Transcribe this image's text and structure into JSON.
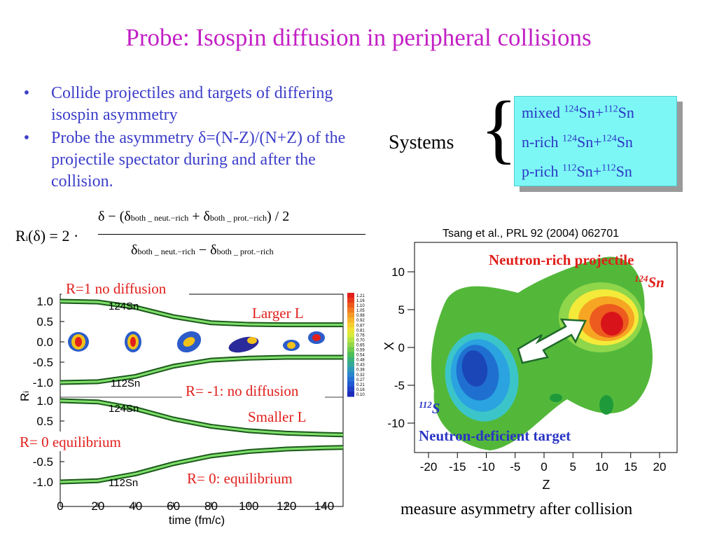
{
  "title": "Probe: Isospin diffusion in peripheral collisions",
  "bullets": [
    "Collide projectiles and targets of differing isospin asymmetry",
    "Probe the asymmetry δ=(N-Z)/(N+Z) of the projectile spectator during and after the collision."
  ],
  "systems": {
    "label": "Systems",
    "brace": "{",
    "items": [
      {
        "prefix": "mixed ",
        "m1": "124",
        "e1": "Sn+",
        "m2": "112",
        "e2": "Sn"
      },
      {
        "prefix": "n-rich ",
        "m1": "124",
        "e1": "Sn+",
        "m2": "124",
        "e2": "Sn"
      },
      {
        "prefix": "p-rich ",
        "m1": "112",
        "e1": "Sn+",
        "m2": "112",
        "e2": "Sn"
      }
    ]
  },
  "formula": {
    "lhs": "R",
    "lhs_sub": "i",
    "lhs_arg": "(δ) = 2 ·",
    "num_a": "δ − (δ",
    "num_sub1": "both _ neut.−rich",
    "num_plus": " + δ",
    "num_sub2": "both _ prot.−rich",
    "num_end": ") / 2",
    "den_a": "δ",
    "den_sub1": "both _ neut.−rich",
    "den_minus": " − δ",
    "den_sub2": "both _ prot.−rich"
  },
  "citation": "Tsang et al., PRL 92 (2004) 062701",
  "measure_text": "measure asymmetry after collision",
  "left_plot": {
    "annotations": {
      "r1": "R=1 no diffusion",
      "larger": "Larger L",
      "rm1": "R= -1: no diffusion",
      "smaller": "Smaller L",
      "r0_left": "R= 0 equilibrium",
      "r0_bottom": "R= 0: equilibrium"
    },
    "panel_labels": {
      "sn124_top": "124Sn",
      "sn112_top": "112Sn",
      "sn124_bot": "124Sn",
      "sn112_bot": "112Sn"
    },
    "ylabel": "R",
    "ylabel_sub": "i",
    "xlabel": "time (fm/c)",
    "y_ticks_top": [
      "1.0",
      "0.5",
      "0.0",
      "-0.5",
      "-1.0"
    ],
    "y_ticks_bot": [
      "1.0",
      "0.5",
      "-0.5",
      "-1.0"
    ],
    "x_ticks": [
      "0",
      "20",
      "40",
      "60",
      "80",
      "100",
      "120",
      "140"
    ],
    "colorbar_ticks": [
      "1.21",
      "1.16",
      "1.10",
      "1.05",
      "0.98",
      "0.92",
      "0.87",
      "0.81",
      "0.76",
      "0.70",
      "0.65",
      "0.59",
      "0.54",
      "0.48",
      "0.43",
      "0.38",
      "0.32",
      "0.27",
      "0.21",
      "0.16",
      "0.10"
    ]
  },
  "right_plot": {
    "neutron_rich": "Neutron-rich projectile",
    "sn124": "124Sn",
    "s112": "112S",
    "neutron_deficient": "Neutron-deficient target",
    "ylabel": "X",
    "xlabel": "Z",
    "y_ticks": [
      "10",
      "5",
      "0",
      "-5",
      "-10"
    ],
    "x_ticks": [
      "-20",
      "-15",
      "-10",
      "-5",
      "0",
      "5",
      "10",
      "15",
      "20"
    ]
  },
  "chart_data": [
    {
      "type": "line",
      "title": "",
      "xlabel": "time (fm/c)",
      "ylabel": "Ri",
      "xlim": [
        0,
        150
      ],
      "ylim": [
        -1.2,
        1.2
      ],
      "panel": "Larger L",
      "series": [
        {
          "name": "124Sn",
          "x": [
            0,
            20,
            40,
            60,
            80,
            100,
            120,
            140,
            150
          ],
          "values": [
            1.0,
            0.98,
            0.85,
            0.62,
            0.47,
            0.43,
            0.42,
            0.42,
            0.42
          ]
        },
        {
          "name": "112Sn",
          "x": [
            0,
            20,
            40,
            60,
            80,
            100,
            120,
            140,
            150
          ],
          "values": [
            -1.0,
            -0.98,
            -0.85,
            -0.6,
            -0.45,
            -0.4,
            -0.38,
            -0.38,
            -0.38
          ]
        }
      ]
    },
    {
      "type": "line",
      "title": "",
      "xlabel": "time (fm/c)",
      "ylabel": "Ri",
      "xlim": [
        0,
        150
      ],
      "ylim": [
        -1.2,
        1.2
      ],
      "panel": "Smaller L",
      "series": [
        {
          "name": "124Sn",
          "x": [
            0,
            20,
            40,
            60,
            80,
            100,
            120,
            140,
            150
          ],
          "values": [
            1.0,
            0.97,
            0.8,
            0.55,
            0.37,
            0.26,
            0.2,
            0.17,
            0.16
          ]
        },
        {
          "name": "112Sn",
          "x": [
            0,
            20,
            40,
            60,
            80,
            100,
            120,
            140,
            150
          ],
          "values": [
            -1.0,
            -0.97,
            -0.8,
            -0.55,
            -0.36,
            -0.25,
            -0.19,
            -0.16,
            -0.15
          ]
        }
      ]
    },
    {
      "type": "heatmap",
      "title": "",
      "xlabel": "Z",
      "ylabel": "X",
      "xlim": [
        -20,
        20
      ],
      "ylim": [
        -12,
        12
      ],
      "blobs": [
        {
          "label": "Neutron-rich projectile",
          "center": [
            10,
            4
          ],
          "level": "high"
        },
        {
          "label": "Neutron-deficient target",
          "center": [
            -14,
            -3
          ],
          "level": "low"
        }
      ]
    }
  ]
}
